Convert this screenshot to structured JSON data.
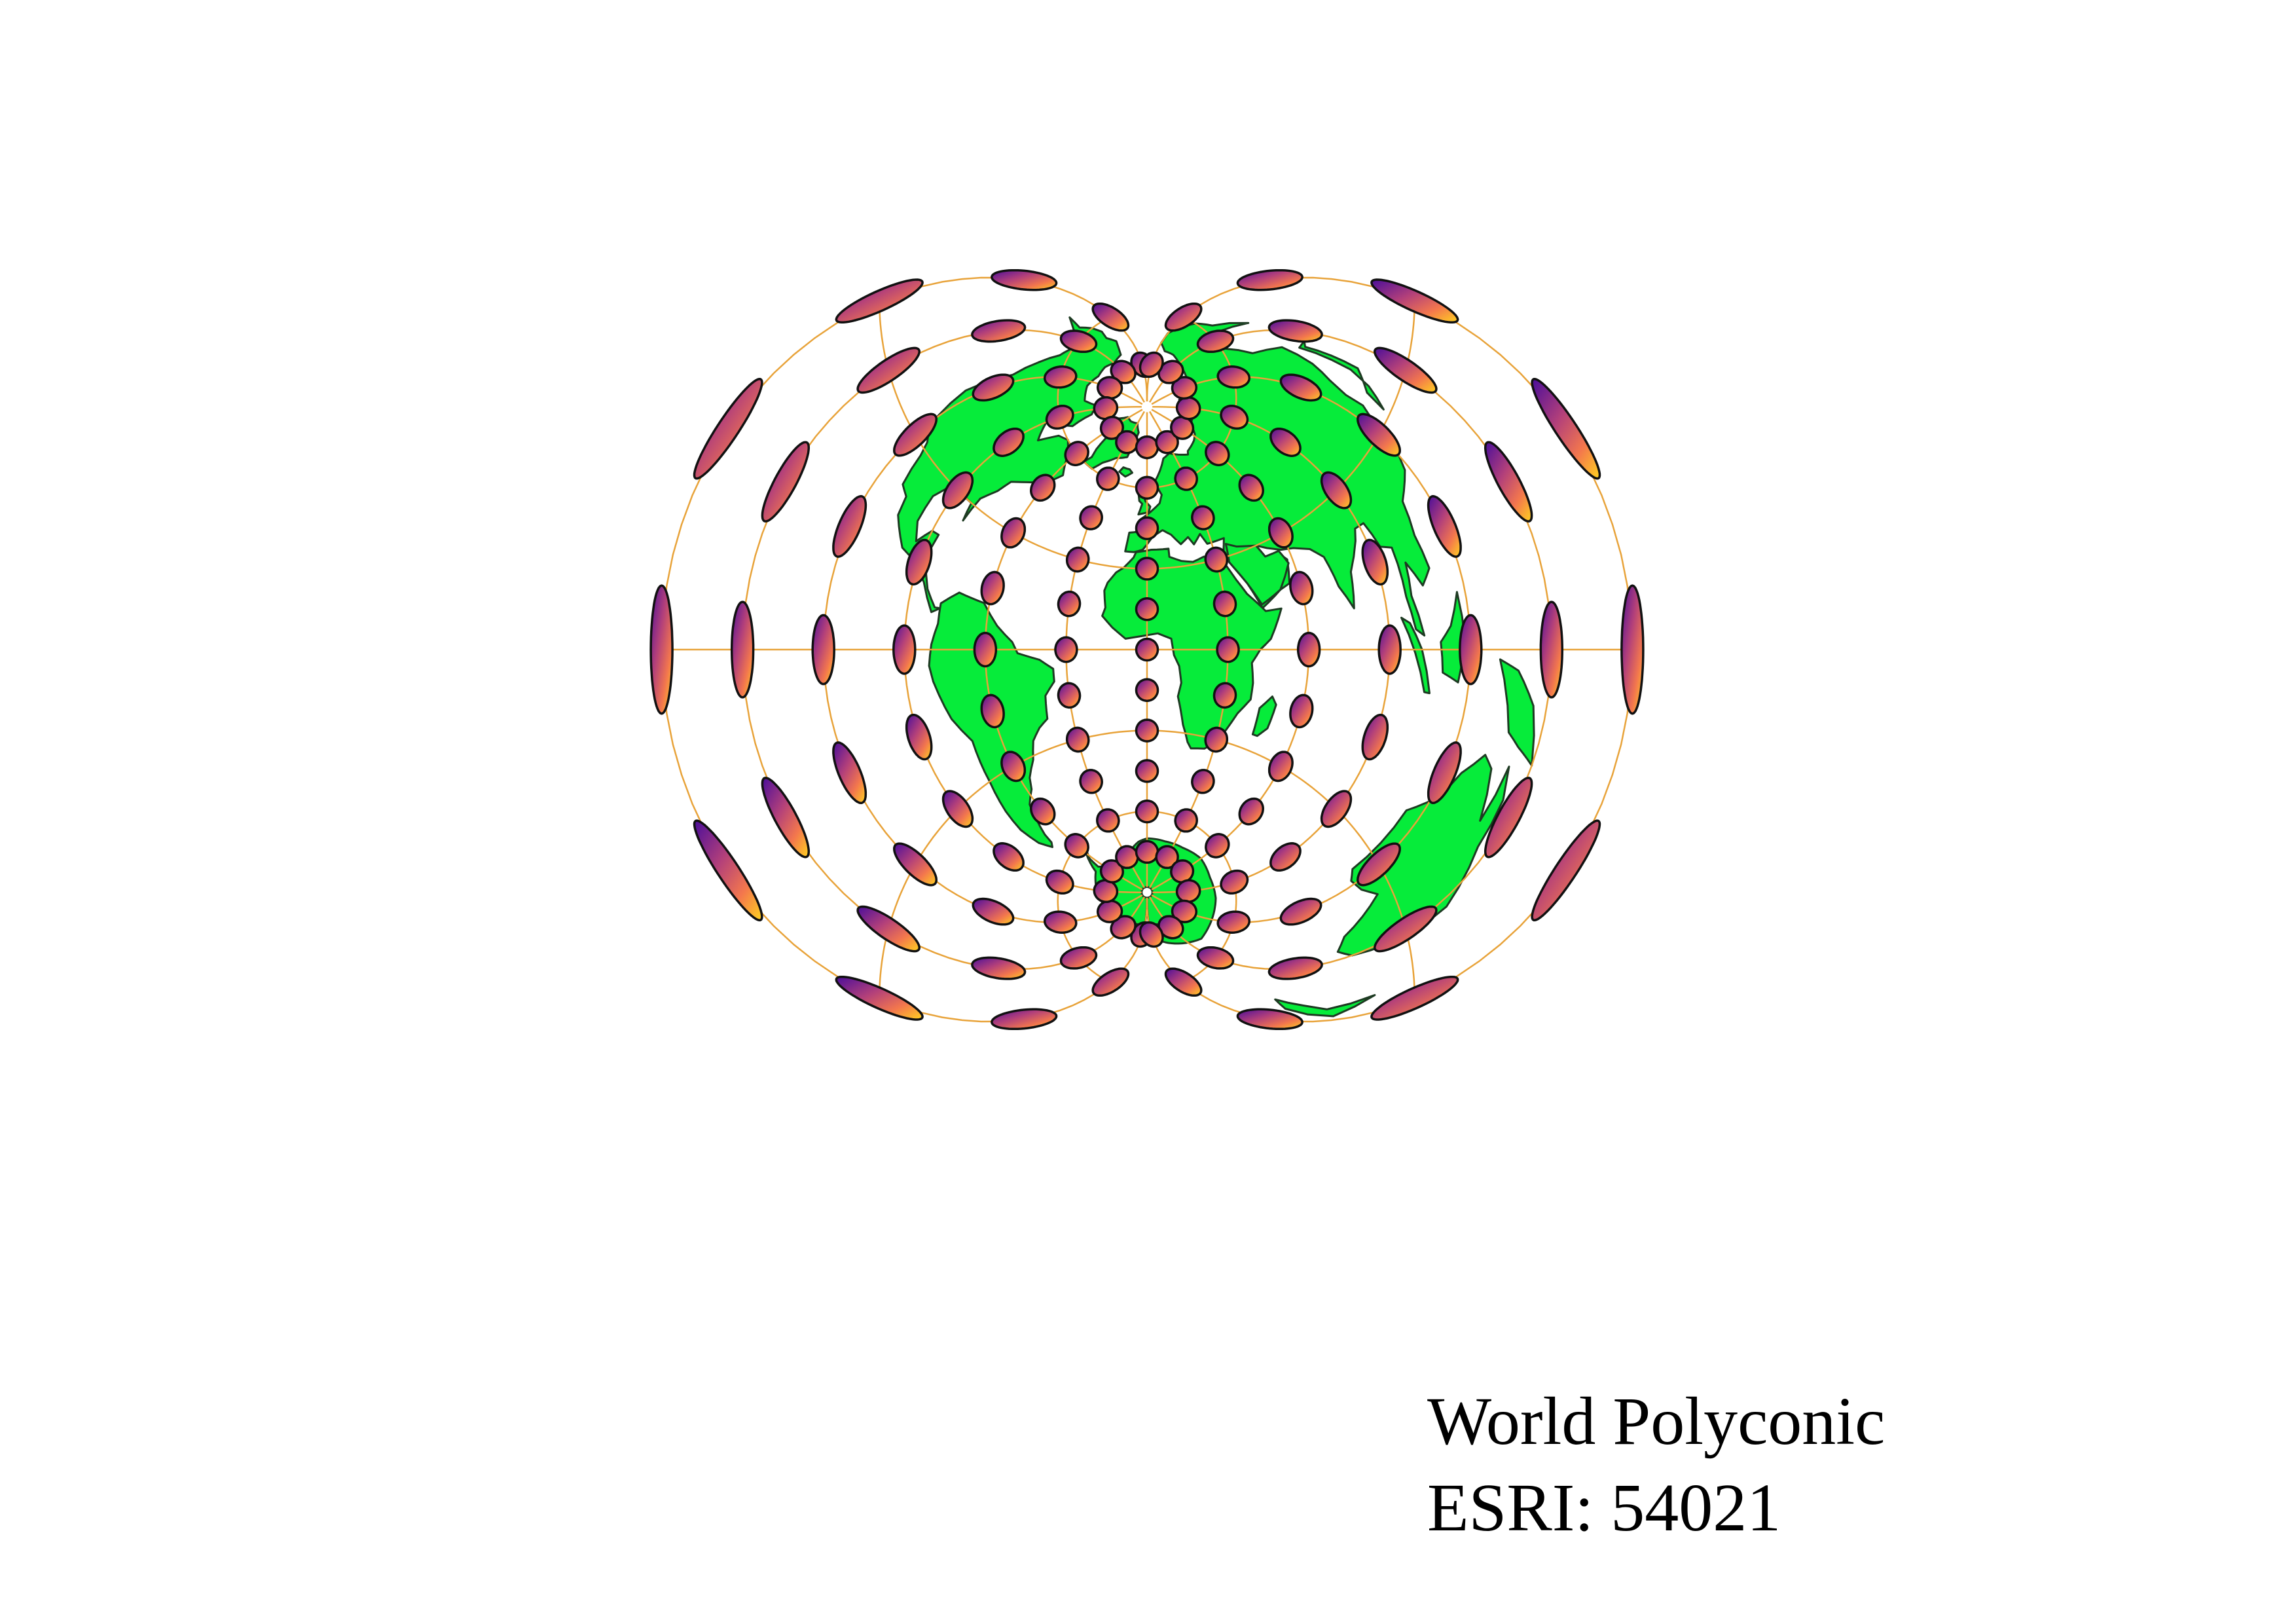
{
  "map": {
    "title": "World Polyconic",
    "code": "ESRI: 54021",
    "visualization": "Tissot indicatrix",
    "colors": {
      "background": "#ffffff",
      "land": "#06ec3a",
      "coastline": "#1d3a22",
      "graticule": "#e8a33a",
      "indicatrix_outline": "#111111",
      "indicatrix_gradient": [
        "#4b0e9a",
        "#b3407a",
        "#f3774d",
        "#ffd21f"
      ]
    },
    "graticule": {
      "central_meridian": 0,
      "meridians_deg": [
        -180,
        -150,
        -120,
        -90,
        -60,
        -30,
        0,
        30,
        60,
        90,
        120,
        150,
        180
      ],
      "parallels_deg": [
        -90,
        -60,
        -30,
        0,
        30,
        60,
        90
      ]
    },
    "tissot_centers": {
      "longitudes_deg": [
        -180,
        -150,
        -120,
        -90,
        -60,
        -30,
        0,
        30,
        60,
        90,
        120,
        150,
        180
      ],
      "latitudes_deg": [
        -75,
        -60,
        -45,
        -30,
        -15,
        0,
        15,
        30,
        45,
        60,
        75
      ]
    }
  }
}
